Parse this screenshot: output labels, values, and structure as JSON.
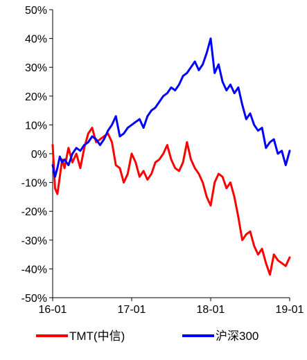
{
  "chart_data": {
    "type": "line",
    "title": "",
    "xlabel": "",
    "ylabel": "",
    "ylim": [
      -50,
      50
    ],
    "yticks": [
      "50%",
      "40%",
      "30%",
      "20%",
      "10%",
      "0%",
      "-10%",
      "-20%",
      "-30%",
      "-40%",
      "-50%"
    ],
    "ytick_values": [
      50,
      40,
      30,
      20,
      10,
      0,
      -10,
      -20,
      -30,
      -40,
      -50
    ],
    "xlim": [
      0,
      3
    ],
    "xticks": [
      "16-01",
      "17-01",
      "18-01",
      "19-01"
    ],
    "xtick_values": [
      0,
      1,
      2,
      3
    ],
    "grid": false,
    "legend_position": "bottom",
    "series": [
      {
        "name": "TMT(中信)",
        "color": "#ff0000",
        "x": [
          0,
          0.03,
          0.06,
          0.09,
          0.12,
          0.15,
          0.2,
          0.25,
          0.3,
          0.35,
          0.4,
          0.45,
          0.5,
          0.55,
          0.6,
          0.65,
          0.7,
          0.75,
          0.8,
          0.85,
          0.9,
          0.95,
          1.0,
          1.05,
          1.1,
          1.15,
          1.2,
          1.25,
          1.3,
          1.35,
          1.4,
          1.45,
          1.5,
          1.55,
          1.6,
          1.65,
          1.7,
          1.75,
          1.8,
          1.85,
          1.9,
          1.95,
          2.0,
          2.05,
          2.1,
          2.15,
          2.2,
          2.25,
          2.3,
          2.35,
          2.4,
          2.45,
          2.5,
          2.55,
          2.6,
          2.65,
          2.7,
          2.75,
          2.8,
          2.85,
          2.9,
          2.95,
          3.0
        ],
        "values": [
          3,
          -12,
          -14,
          -8,
          -2,
          -5,
          2,
          -3,
          0,
          -5,
          2,
          7,
          9,
          4,
          5,
          6,
          7,
          4,
          -4,
          -5,
          -10,
          -7,
          0,
          -3,
          -8,
          -6,
          -9,
          -7,
          -3,
          -2,
          0,
          3,
          -2,
          -5,
          -6,
          -3,
          4,
          -2,
          -5,
          -7,
          -10,
          -15,
          -18,
          -10,
          -7,
          -8,
          -12,
          -10,
          -15,
          -22,
          -30,
          -28,
          -27,
          -32,
          -35,
          -33,
          -38,
          -42,
          -35,
          -37,
          -38,
          -39,
          -36
        ]
      },
      {
        "name": "沪深300",
        "color": "#0000ff",
        "x": [
          0,
          0.03,
          0.06,
          0.09,
          0.12,
          0.15,
          0.2,
          0.25,
          0.3,
          0.35,
          0.4,
          0.45,
          0.5,
          0.55,
          0.6,
          0.65,
          0.7,
          0.75,
          0.8,
          0.85,
          0.9,
          0.95,
          1.0,
          1.05,
          1.1,
          1.15,
          1.2,
          1.25,
          1.3,
          1.35,
          1.4,
          1.45,
          1.5,
          1.55,
          1.6,
          1.65,
          1.7,
          1.75,
          1.8,
          1.85,
          1.9,
          1.95,
          2.0,
          2.05,
          2.1,
          2.15,
          2.2,
          2.25,
          2.3,
          2.35,
          2.4,
          2.45,
          2.5,
          2.55,
          2.6,
          2.65,
          2.7,
          2.75,
          2.8,
          2.85,
          2.9,
          2.95,
          3.0
        ],
        "values": [
          -4,
          -8,
          -5,
          -1,
          -3,
          -2,
          -4,
          0,
          2,
          1,
          3,
          4,
          6,
          5,
          3,
          5,
          8,
          10,
          13,
          6,
          7,
          9,
          10,
          11,
          12,
          9,
          13,
          15,
          16,
          18,
          20,
          21,
          23,
          22,
          24,
          27,
          28,
          30,
          32,
          29,
          31,
          35,
          40,
          28,
          31,
          25,
          22,
          24,
          21,
          23,
          17,
          12,
          14,
          10,
          8,
          9,
          2,
          4,
          5,
          0,
          1,
          -4,
          1
        ]
      }
    ]
  }
}
